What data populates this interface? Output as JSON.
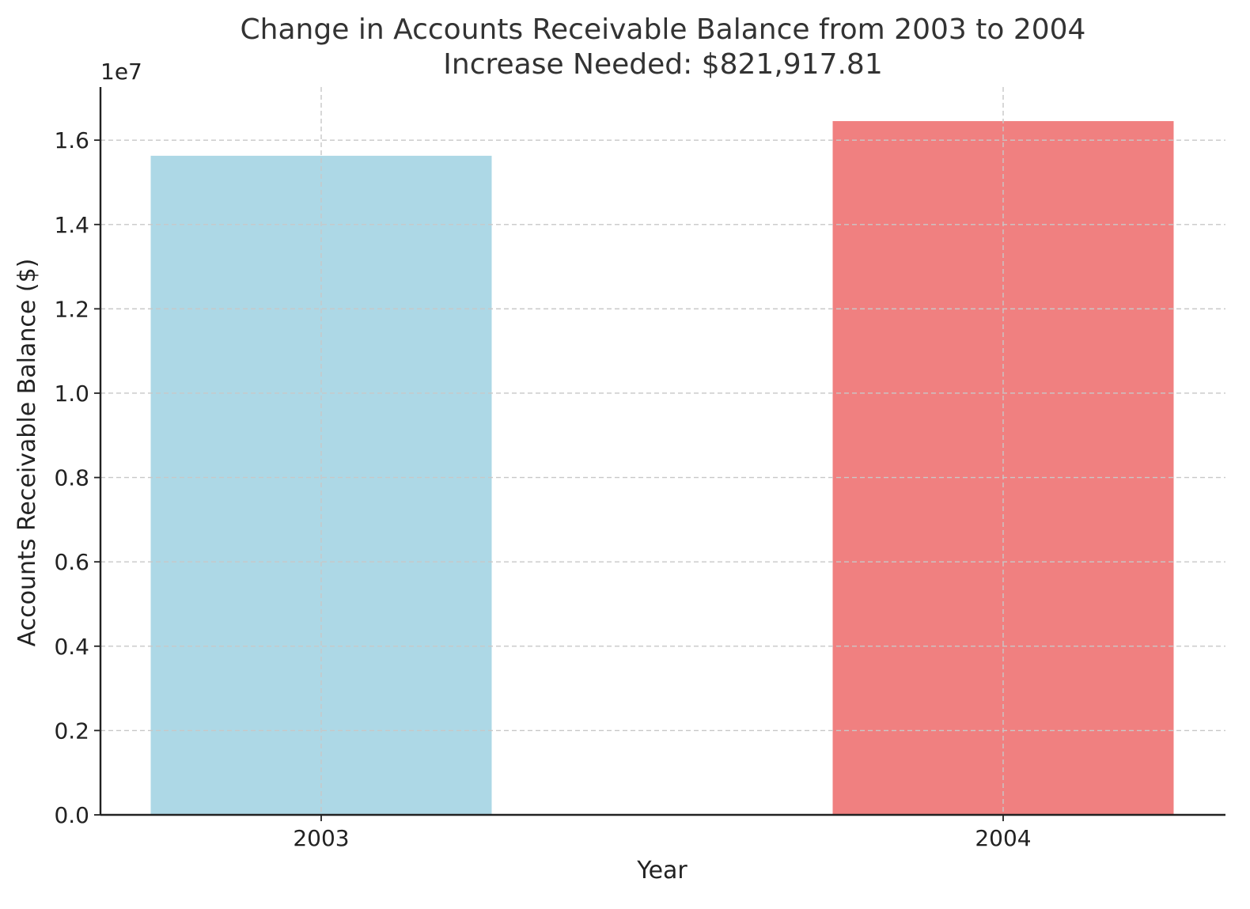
{
  "chart_data": {
    "type": "bar",
    "title": "Change in Accounts Receivable Balance from 2003 to 2004",
    "subtitle": "Increase Needed: $821,917.81",
    "xlabel": "Year",
    "ylabel": "Accounts Receivable Balance ($)",
    "y_offset_label": "1e7",
    "categories": [
      "2003",
      "2004"
    ],
    "values": [
      15630000,
      16451917.81
    ],
    "colors": [
      "#add8e6",
      "#f08080"
    ],
    "ylim": [
      0,
      17260000
    ],
    "y_ticks": [
      0,
      2000000,
      4000000,
      6000000,
      8000000,
      10000000,
      12000000,
      14000000,
      16000000
    ],
    "y_tick_labels": [
      "0.0",
      "0.2",
      "0.4",
      "0.6",
      "0.8",
      "1.0",
      "1.2",
      "1.4",
      "1.6"
    ],
    "grid": true,
    "grid_style": "dashed"
  }
}
